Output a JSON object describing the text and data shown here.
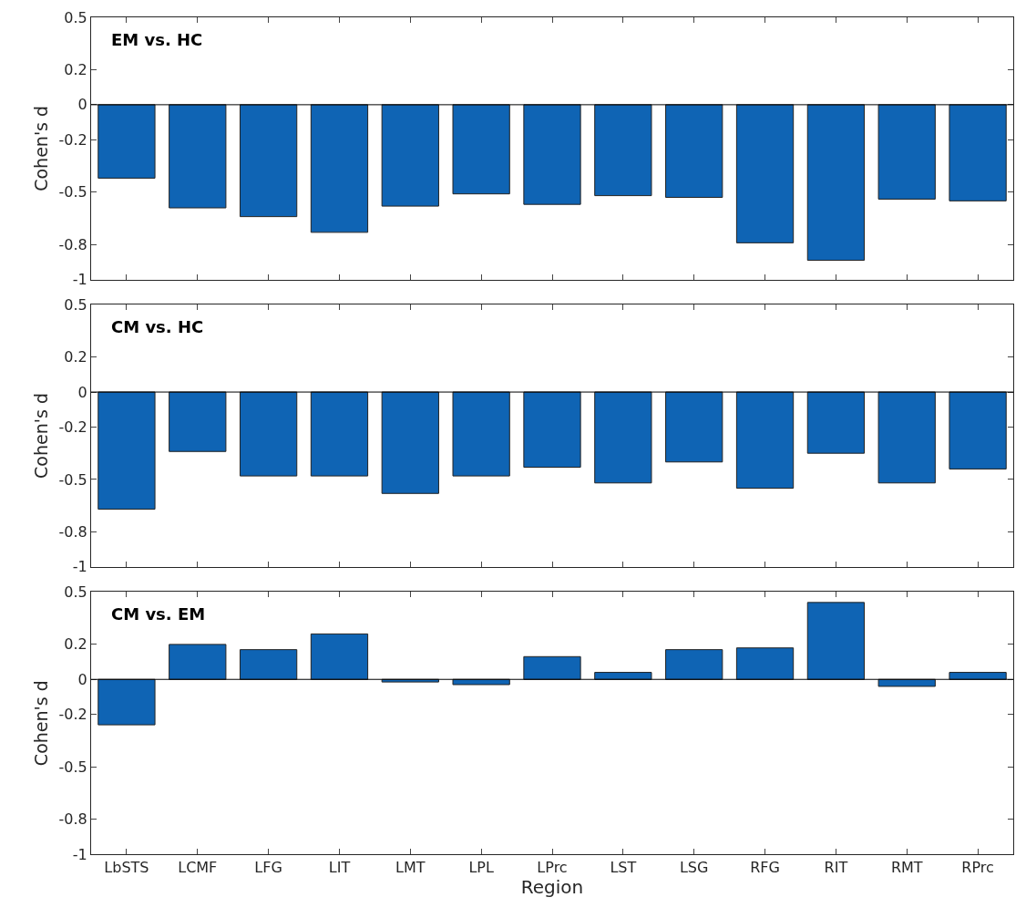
{
  "chart_data": [
    {
      "type": "bar",
      "title": "EM vs. HC",
      "ylabel": "Cohen's d",
      "categories": [
        "LbSTS",
        "LCMF",
        "LFG",
        "LIT",
        "LMT",
        "LPL",
        "LPrc",
        "LST",
        "LSG",
        "RFG",
        "RIT",
        "RMT",
        "RPrc"
      ],
      "values": [
        -0.42,
        -0.59,
        -0.64,
        -0.73,
        -0.58,
        -0.51,
        -0.57,
        -0.52,
        -0.53,
        -0.79,
        -0.89,
        -0.54,
        -0.55
      ],
      "color": "#0f64b4",
      "ylim": [
        -1,
        0.5
      ],
      "yticks": [
        -1,
        -0.8,
        -0.5,
        -0.2,
        0,
        0.2,
        0.5
      ],
      "tick_labels": "y",
      "ref_lines": [
        {
          "axis": "y",
          "value": 0,
          "label": null,
          "color": "#000000"
        }
      ]
    },
    {
      "type": "bar",
      "title": "CM vs. HC",
      "ylabel": "Cohen's d",
      "categories": [
        "LbSTS",
        "LCMF",
        "LFG",
        "LIT",
        "LMT",
        "LPL",
        "LPrc",
        "LST",
        "LSG",
        "RFG",
        "RIT",
        "RMT",
        "RPrc"
      ],
      "values": [
        -0.67,
        -0.34,
        -0.48,
        -0.48,
        -0.58,
        -0.48,
        -0.43,
        -0.52,
        -0.4,
        -0.55,
        -0.35,
        -0.52,
        -0.44
      ],
      "color": "#0f64b4",
      "ylim": [
        -1,
        0.5
      ],
      "yticks": [
        -1,
        -0.8,
        -0.5,
        -0.2,
        0,
        0.2,
        0.5
      ],
      "tick_labels": "y",
      "ref_lines": [
        {
          "axis": "y",
          "value": 0,
          "label": null,
          "color": "#000000"
        }
      ]
    },
    {
      "type": "bar",
      "title": "CM vs. EM",
      "ylabel": "Cohen's d",
      "xlabel": "Region",
      "categories": [
        "LbSTS",
        "LCMF",
        "LFG",
        "LIT",
        "LMT",
        "LPL",
        "LPrc",
        "LST",
        "LSG",
        "RFG",
        "RIT",
        "RMT",
        "RPrc"
      ],
      "values": [
        -0.26,
        0.2,
        0.17,
        0.26,
        -0.015,
        -0.03,
        0.13,
        0.04,
        0.17,
        0.18,
        0.44,
        -0.04,
        0.04
      ],
      "color": "#0f64b4",
      "ylim": [
        -1,
        0.5
      ],
      "yticks": [
        -1,
        -0.8,
        -0.5,
        -0.2,
        0,
        0.2,
        0.5
      ],
      "ref_lines": [
        {
          "axis": "y",
          "value": 0,
          "label": null,
          "color": "#000000"
        }
      ]
    }
  ]
}
